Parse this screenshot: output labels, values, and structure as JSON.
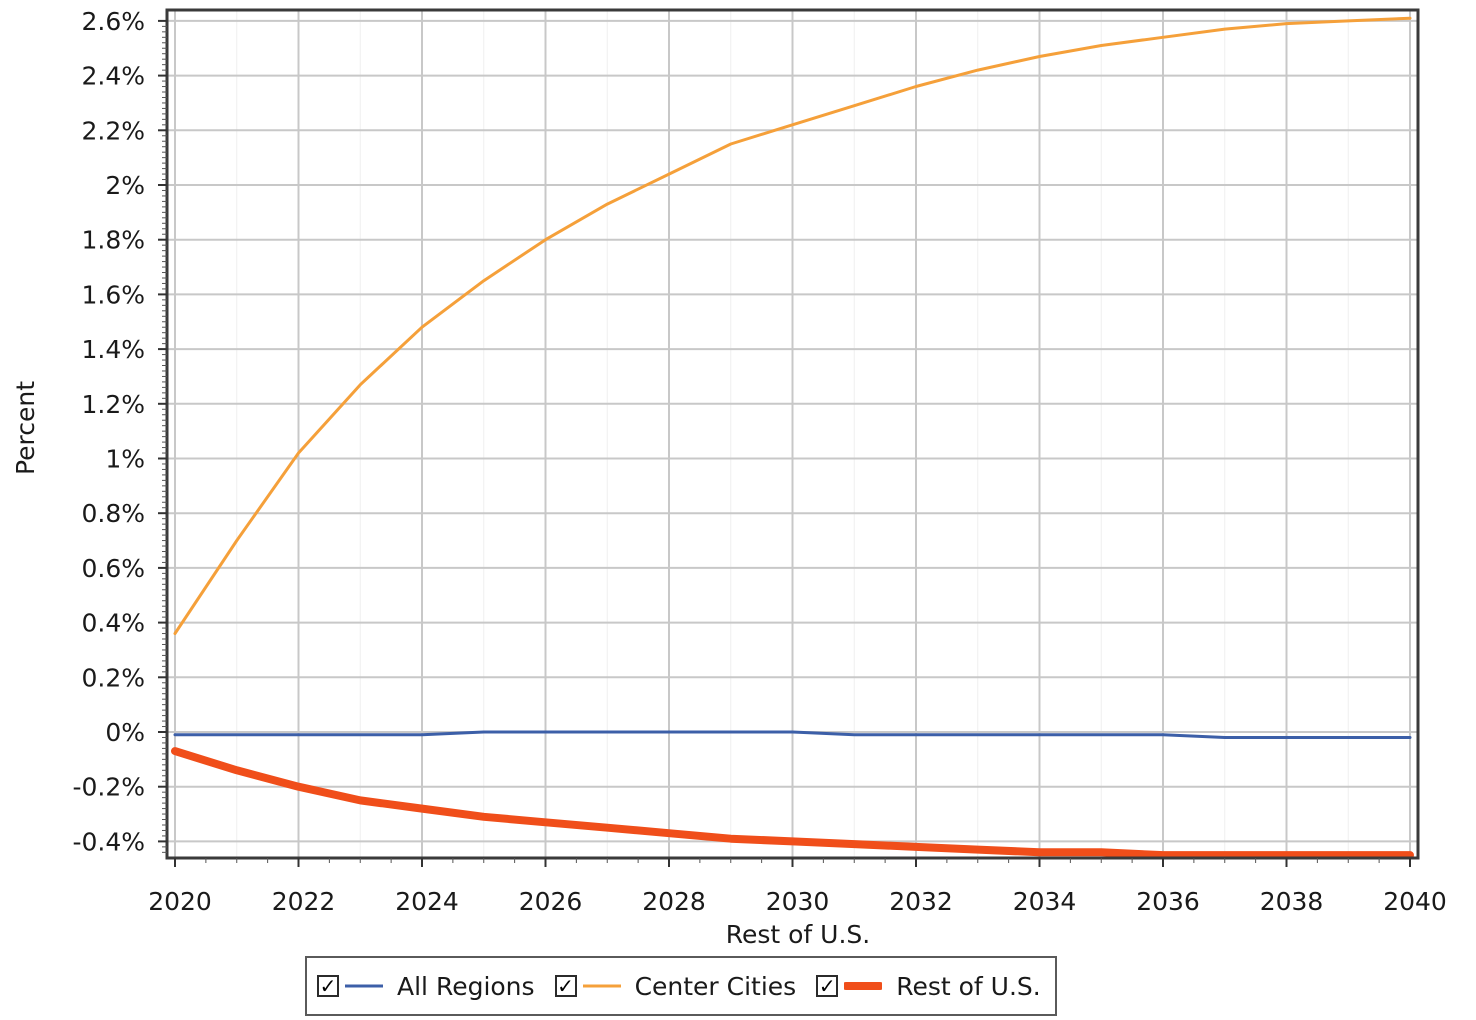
{
  "chart_data": {
    "type": "line",
    "xlabel": "Rest of U.S.",
    "ylabel": "Percent",
    "x": [
      2020,
      2021,
      2022,
      2023,
      2024,
      2025,
      2026,
      2027,
      2028,
      2029,
      2030,
      2031,
      2032,
      2033,
      2034,
      2035,
      2036,
      2037,
      2038,
      2039,
      2040
    ],
    "xlim": [
      2020,
      2040
    ],
    "ylim": [
      -0.46,
      2.62
    ],
    "x_ticks": [
      2020,
      2022,
      2024,
      2026,
      2028,
      2030,
      2032,
      2034,
      2036,
      2038,
      2040
    ],
    "x_tick_labels": [
      "2020",
      "2022",
      "2024",
      "2026",
      "2028",
      "2030",
      "2032",
      "2034",
      "2036",
      "2038",
      "2040"
    ],
    "y_ticks": [
      -0.4,
      -0.2,
      0,
      0.2,
      0.4,
      0.6,
      0.8,
      1.0,
      1.2,
      1.4,
      1.6,
      1.8,
      2.0,
      2.2,
      2.4,
      2.6
    ],
    "y_tick_labels": [
      "-0.4%",
      "-0.2%",
      "0%",
      "0.2%",
      "0.4%",
      "0.6%",
      "0.8%",
      "1%",
      "1.2%",
      "1.4%",
      "1.6%",
      "1.8%",
      "2%",
      "2.2%",
      "2.4%",
      "2.6%"
    ],
    "grid": true,
    "legend_position": "bottom",
    "series": [
      {
        "name": "All Regions",
        "color": "#3c5fa8",
        "values": [
          -0.01,
          -0.01,
          -0.01,
          -0.01,
          -0.01,
          0.0,
          0.0,
          0.0,
          0.0,
          0.0,
          0.0,
          -0.01,
          -0.01,
          -0.01,
          -0.01,
          -0.01,
          -0.01,
          -0.02,
          -0.02,
          -0.02,
          -0.02
        ]
      },
      {
        "name": "Center Cities",
        "color": "#f5a03a",
        "values": [
          0.36,
          0.7,
          1.02,
          1.27,
          1.48,
          1.65,
          1.8,
          1.93,
          2.04,
          2.15,
          2.22,
          2.29,
          2.36,
          2.42,
          2.47,
          2.51,
          2.54,
          2.57,
          2.59,
          2.6,
          2.61
        ]
      },
      {
        "name": "Rest of U.S.",
        "color": "#f04e1a",
        "values": [
          -0.07,
          -0.14,
          -0.2,
          -0.25,
          -0.28,
          -0.31,
          -0.33,
          -0.35,
          -0.37,
          -0.39,
          -0.4,
          -0.41,
          -0.42,
          -0.43,
          -0.44,
          -0.44,
          -0.45,
          -0.45,
          -0.45,
          -0.45,
          -0.45
        ]
      }
    ]
  },
  "legend": {
    "check_glyph": "✓",
    "items": [
      {
        "label": "All Regions"
      },
      {
        "label": "Center Cities"
      },
      {
        "label": "Rest of U.S."
      }
    ]
  }
}
